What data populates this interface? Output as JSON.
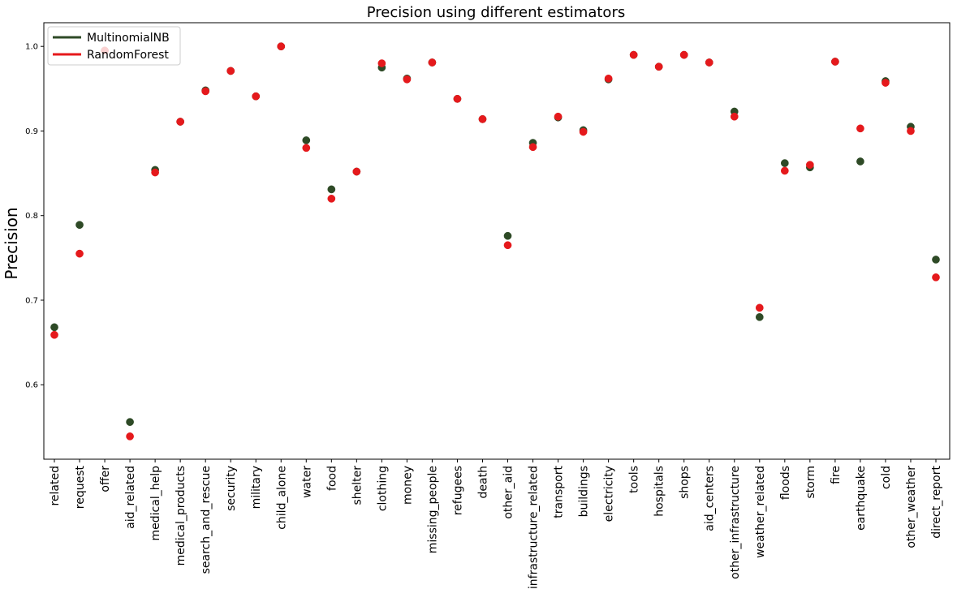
{
  "chart_data": {
    "type": "scatter",
    "title": "Precision using different estimators",
    "xlabel": "",
    "ylabel": "Precision",
    "ylim": [
      0.512,
      1.028
    ],
    "yticks": [
      0.6,
      0.7,
      0.8,
      0.9,
      1.0
    ],
    "ytick_labels": [
      "0.6",
      "0.7",
      "0.8",
      "0.9",
      "1.0"
    ],
    "grid": false,
    "legend_position": "top-left",
    "categories": [
      "related",
      "request",
      "offer",
      "aid_related",
      "medical_help",
      "medical_products",
      "search_and_rescue",
      "security",
      "military",
      "child_alone",
      "water",
      "food",
      "shelter",
      "clothing",
      "money",
      "missing_people",
      "refugees",
      "death",
      "other_aid",
      "infrastructure_related",
      "transport",
      "buildings",
      "electricity",
      "tools",
      "hospitals",
      "shops",
      "aid_centers",
      "other_infrastructure",
      "weather_related",
      "floods",
      "storm",
      "fire",
      "earthquake",
      "cold",
      "other_weather",
      "direct_report"
    ],
    "series": [
      {
        "name": "MultinomialNB",
        "color": "#2e4a26",
        "values": [
          0.668,
          0.789,
          0.995,
          0.556,
          0.854,
          0.911,
          0.948,
          0.971,
          0.941,
          1.0,
          0.889,
          0.831,
          0.852,
          0.975,
          0.962,
          0.981,
          0.938,
          0.914,
          0.776,
          0.886,
          0.916,
          0.901,
          0.961,
          0.99,
          0.976,
          0.99,
          0.981,
          0.923,
          0.68,
          0.862,
          0.857,
          0.982,
          0.864,
          0.959,
          0.905,
          0.748
        ]
      },
      {
        "name": "RandomForest",
        "color": "#e5191c",
        "values": [
          0.659,
          0.755,
          0.995,
          0.539,
          0.851,
          0.911,
          0.947,
          0.971,
          0.941,
          1.0,
          0.88,
          0.82,
          0.852,
          0.98,
          0.961,
          0.981,
          0.938,
          0.914,
          0.765,
          0.881,
          0.917,
          0.899,
          0.962,
          0.99,
          0.976,
          0.99,
          0.981,
          0.917,
          0.691,
          0.853,
          0.86,
          0.982,
          0.903,
          0.957,
          0.9,
          0.727
        ]
      }
    ]
  }
}
